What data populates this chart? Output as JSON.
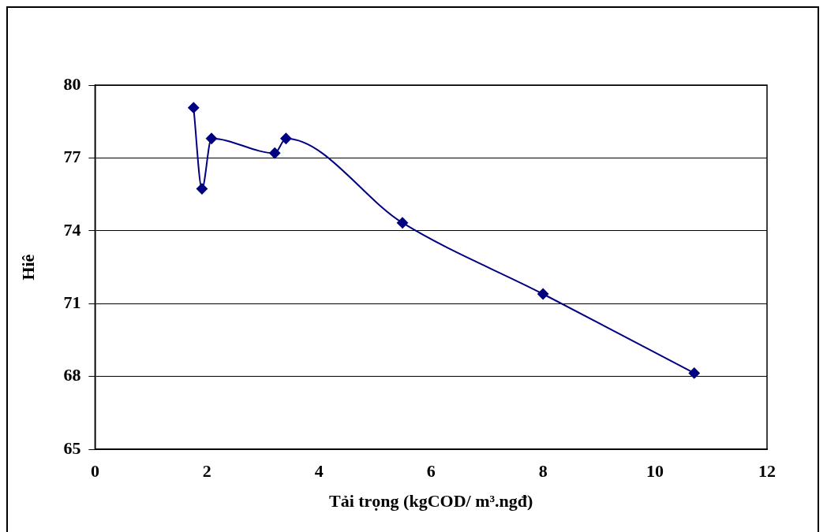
{
  "chart_data": {
    "type": "line",
    "xlabel": "Tải trọng (kgCOD/ m³.ngđ)",
    "ylabel": "Hiê",
    "x": [
      1.76,
      1.91,
      2.08,
      3.21,
      3.41,
      5.49,
      8.0,
      10.7
    ],
    "series": [
      {
        "color": "#000080",
        "values": [
          79.07,
          75.73,
          77.8,
          77.2,
          77.8,
          74.33,
          71.4,
          68.14
        ]
      }
    ],
    "xlim": [
      0,
      12
    ],
    "xticks": [
      0,
      2,
      4,
      6,
      8,
      10,
      12
    ],
    "ylim": [
      65,
      80
    ],
    "yticks": [
      65,
      68,
      71,
      74,
      77,
      80
    ],
    "grid": "y",
    "marker": "diamond",
    "line_style": "solid",
    "legend": false
  }
}
